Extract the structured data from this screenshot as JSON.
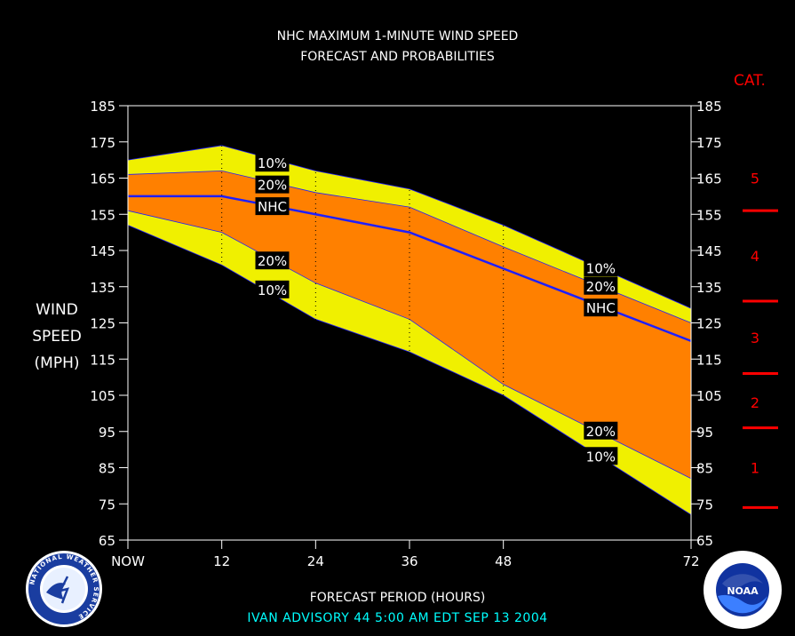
{
  "header": {
    "title_line1": "NHC MAXIMUM 1-MINUTE WIND SPEED",
    "title_line2": "FORECAST AND PROBABILITIES"
  },
  "ylabel": {
    "line1": "WIND",
    "line2": "SPEED",
    "line3": "(MPH)"
  },
  "category_title": "CAT.",
  "xlabel": "FORECAST PERIOD (HOURS)",
  "advisory": "IVAN   ADVISORY  44 5:00  AM  EDT  SEP  13  2004",
  "logos": {
    "left": "NATIONAL WEATHER SERVICE",
    "right": "NOAA"
  },
  "colors": {
    "outer_band": "#f0f000",
    "inner_band": "#ff8000",
    "nhc_line": "#1f1fff",
    "category": "#ff0000",
    "advisory_text": "#00ffff"
  },
  "chart_data": {
    "type": "area",
    "x": [
      0,
      12,
      24,
      36,
      48,
      72
    ],
    "xticklabels": [
      "NOW",
      "12",
      "24",
      "36",
      "48",
      "72"
    ],
    "xlim": [
      0,
      72
    ],
    "ylim": [
      65,
      185
    ],
    "yticks": [
      65,
      75,
      85,
      95,
      105,
      115,
      125,
      135,
      145,
      155,
      165,
      175,
      185
    ],
    "grid": "vertical dotted at 12, 24, 36, 48",
    "series": [
      {
        "name": "10%",
        "role": "upper-10",
        "values": [
          170,
          174,
          167,
          162,
          152,
          129
        ]
      },
      {
        "name": "20%",
        "role": "upper-20",
        "values": [
          166,
          167,
          161,
          157,
          146,
          125
        ]
      },
      {
        "name": "NHC",
        "role": "forecast",
        "values": [
          160,
          160,
          155,
          150,
          140,
          120
        ]
      },
      {
        "name": "20%",
        "role": "lower-20",
        "values": [
          156,
          150,
          136,
          126,
          108,
          82
        ]
      },
      {
        "name": "10%",
        "role": "lower-10",
        "values": [
          152,
          141,
          126,
          117,
          105,
          72
        ]
      }
    ],
    "annotations": [
      {
        "text": "10%",
        "x": 18,
        "y": 169
      },
      {
        "text": "20%",
        "x": 18,
        "y": 163
      },
      {
        "text": "NHC",
        "x": 18,
        "y": 157
      },
      {
        "text": "20%",
        "x": 18,
        "y": 142
      },
      {
        "text": "10%",
        "x": 18,
        "y": 134
      },
      {
        "text": "10%",
        "x": 60,
        "y": 140
      },
      {
        "text": "20%",
        "x": 60,
        "y": 135
      },
      {
        "text": "NHC",
        "x": 60,
        "y": 129
      },
      {
        "text": "20%",
        "x": 60,
        "y": 95
      },
      {
        "text": "10%",
        "x": 60,
        "y": 88
      }
    ],
    "categories_scale": {
      "boundaries": [
        74,
        96,
        111,
        131,
        156
      ],
      "labels": [
        {
          "label": "1",
          "y": 85
        },
        {
          "label": "2",
          "y": 103
        },
        {
          "label": "3",
          "y": 121
        },
        {
          "label": "4",
          "y": 143.5
        },
        {
          "label": "5",
          "y": 165
        }
      ]
    }
  }
}
